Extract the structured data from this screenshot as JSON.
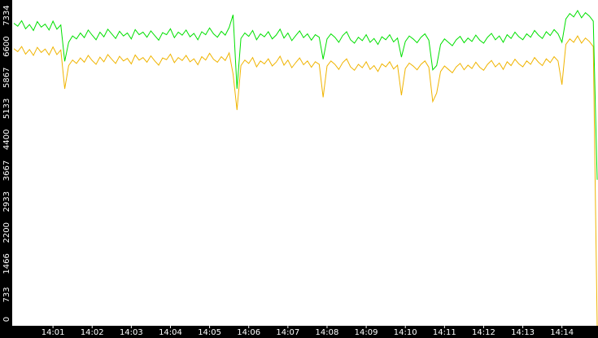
{
  "chart_data": {
    "type": "line",
    "categories": [
      null,
      null,
      null,
      null,
      null,
      null,
      null,
      null,
      null,
      null,
      "14:01",
      null,
      null,
      null,
      null,
      null,
      null,
      null,
      null,
      null,
      "14:02",
      null,
      null,
      null,
      null,
      null,
      null,
      null,
      null,
      null,
      "14:03",
      null,
      null,
      null,
      null,
      null,
      null,
      null,
      null,
      null,
      "14:04",
      null,
      null,
      null,
      null,
      null,
      null,
      null,
      null,
      null,
      "14:05",
      null,
      null,
      null,
      null,
      null,
      null,
      null,
      null,
      null,
      "14:06",
      null,
      null,
      null,
      null,
      null,
      null,
      null,
      null,
      null,
      "14:07",
      null,
      null,
      null,
      null,
      null,
      null,
      null,
      null,
      null,
      "14:08",
      null,
      null,
      null,
      null,
      null,
      null,
      null,
      null,
      null,
      "14:09",
      null,
      null,
      null,
      null,
      null,
      null,
      null,
      null,
      null,
      "14:10",
      null,
      null,
      null,
      null,
      null,
      null,
      null,
      null,
      null,
      "14:11",
      null,
      null,
      null,
      null,
      null,
      null,
      null,
      null,
      null,
      "14:12",
      null,
      null,
      null,
      null,
      null,
      null,
      null,
      null,
      null,
      "14:13",
      null,
      null,
      null,
      null,
      null,
      null,
      null,
      null,
      null,
      "14:14",
      null,
      null,
      null,
      null,
      null,
      null,
      null,
      null,
      null
    ],
    "series": [
      {
        "color": "#00e000",
        "values": [
          7150,
          7080,
          7210,
          7020,
          7120,
          6980,
          7190,
          7060,
          7130,
          6990,
          7200,
          7010,
          7110,
          6250,
          6700,
          6850,
          6780,
          6920,
          6810,
          6990,
          6870,
          6760,
          6940,
          6830,
          7010,
          6900,
          6790,
          6960,
          6850,
          6920,
          6780,
          7000,
          6880,
          6940,
          6820,
          6970,
          6860,
          6750,
          6930,
          6880,
          7020,
          6810,
          6940,
          6870,
          6990,
          6830,
          6910,
          6760,
          6950,
          6880,
          7040,
          6900,
          6820,
          6960,
          6870,
          7050,
          7350,
          5600,
          6790,
          6920,
          6840,
          6980,
          6760,
          6900,
          6830,
          6950,
          6780,
          6870,
          7010,
          6800,
          6920,
          6740,
          6860,
          6970,
          6810,
          6900,
          6750,
          6880,
          6820,
          6300,
          6780,
          6900,
          6820,
          6700,
          6860,
          6950,
          6760,
          6680,
          6820,
          6740,
          6880,
          6700,
          6790,
          6650,
          6830,
          6760,
          6880,
          6710,
          6800,
          6350,
          6720,
          6850,
          6780,
          6690,
          6820,
          6900,
          6750,
          6050,
          6150,
          6650,
          6780,
          6700,
          6620,
          6760,
          6840,
          6690,
          6800,
          6720,
          6870,
          6750,
          6680,
          6820,
          6910,
          6760,
          6850,
          6700,
          6880,
          6790,
          6940,
          6830,
          6760,
          6900,
          6820,
          6980,
          6870,
          6790,
          6950,
          6860,
          7000,
          6900,
          6700,
          7250,
          7380,
          7300,
          7450,
          7280,
          7400,
          7320,
          7200,
          3450
        ]
      },
      {
        "color": "#f0b400",
        "values": [
          6550,
          6480,
          6600,
          6420,
          6530,
          6390,
          6580,
          6460,
          6540,
          6400,
          6590,
          6410,
          6520,
          5600,
          6150,
          6280,
          6200,
          6330,
          6230,
          6390,
          6270,
          6180,
          6350,
          6240,
          6410,
          6300,
          6200,
          6370,
          6260,
          6320,
          6190,
          6400,
          6280,
          6340,
          6230,
          6380,
          6260,
          6160,
          6330,
          6290,
          6420,
          6220,
          6340,
          6270,
          6390,
          6240,
          6310,
          6170,
          6360,
          6280,
          6440,
          6300,
          6230,
          6360,
          6270,
          6450,
          5950,
          5100,
          6150,
          6280,
          6200,
          6340,
          6120,
          6260,
          6190,
          6310,
          6140,
          6230,
          6370,
          6160,
          6280,
          6100,
          6220,
          6330,
          6170,
          6260,
          6110,
          6240,
          6180,
          5400,
          6140,
          6260,
          6180,
          6060,
          6220,
          6310,
          6120,
          6040,
          6180,
          6100,
          6240,
          6060,
          6150,
          6010,
          6190,
          6120,
          6240,
          6070,
          6160,
          5450,
          6080,
          6210,
          6140,
          6050,
          6180,
          6260,
          6110,
          5300,
          5500,
          6010,
          6140,
          6060,
          5980,
          6120,
          6200,
          6050,
          6160,
          6080,
          6230,
          6110,
          6040,
          6180,
          6270,
          6120,
          6210,
          6060,
          6240,
          6150,
          6300,
          6190,
          6120,
          6260,
          6180,
          6340,
          6230,
          6150,
          6310,
          6220,
          6360,
          6260,
          5700,
          6650,
          6780,
          6700,
          6850,
          6680,
          6800,
          6720,
          6600,
          0
        ]
      }
    ],
    "ylim": [
      0,
      7700
    ],
    "yticks": [
      0,
      733,
      1466,
      2200,
      2933,
      3667,
      4400,
      5133,
      5867,
      6600,
      7334
    ]
  }
}
